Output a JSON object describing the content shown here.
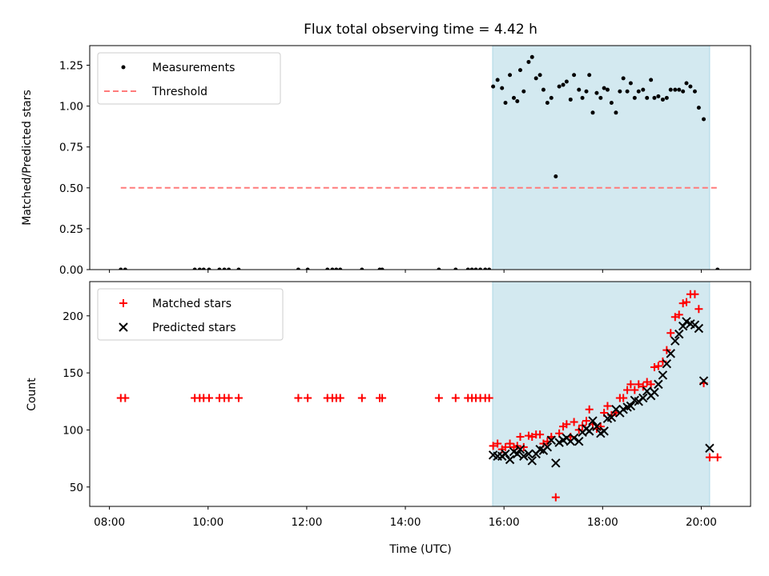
{
  "chart_data": [
    {
      "type": "scatter",
      "title": "Flux total observing time = 4.42 h",
      "xlabel": "",
      "ylabel": "Matched/Predicted stars",
      "x_unit": "hours (UTC)",
      "xlim": [
        7.6,
        21.0
      ],
      "ylim": [
        0.0,
        1.37
      ],
      "yticks": [
        0.0,
        0.25,
        0.5,
        0.75,
        1.0,
        1.25
      ],
      "ytick_labels": [
        "0.00",
        "0.25",
        "0.50",
        "0.75",
        "1.00",
        "1.25"
      ],
      "shaded_region": {
        "x_start": 15.77,
        "x_end": 20.17,
        "color": "#d3e9f0"
      },
      "legend": {
        "placement": "upper-left",
        "entries": [
          "Measurements",
          "Threshold"
        ]
      },
      "series": [
        {
          "name": "Measurements",
          "marker": "dot",
          "color": "#000000",
          "points": [
            [
              8.23,
              0.0
            ],
            [
              8.32,
              0.0
            ],
            [
              9.73,
              0.0
            ],
            [
              9.83,
              0.0
            ],
            [
              9.91,
              0.0
            ],
            [
              10.02,
              0.0
            ],
            [
              10.23,
              0.0
            ],
            [
              10.33,
              0.0
            ],
            [
              10.42,
              0.0
            ],
            [
              10.62,
              0.0
            ],
            [
              11.83,
              0.0
            ],
            [
              12.02,
              0.0
            ],
            [
              12.42,
              0.0
            ],
            [
              12.52,
              0.0
            ],
            [
              12.6,
              0.0
            ],
            [
              12.68,
              0.0
            ],
            [
              13.12,
              0.0
            ],
            [
              13.48,
              0.0
            ],
            [
              13.53,
              0.0
            ],
            [
              14.68,
              0.0
            ],
            [
              15.02,
              0.0
            ],
            [
              15.27,
              0.0
            ],
            [
              15.35,
              0.0
            ],
            [
              15.43,
              0.0
            ],
            [
              15.52,
              0.0
            ],
            [
              15.62,
              0.0
            ],
            [
              15.7,
              0.0
            ],
            [
              15.78,
              1.12
            ],
            [
              15.87,
              1.16
            ],
            [
              15.96,
              1.11
            ],
            [
              16.03,
              1.02
            ],
            [
              16.12,
              1.19
            ],
            [
              16.2,
              1.05
            ],
            [
              16.27,
              1.03
            ],
            [
              16.33,
              1.22
            ],
            [
              16.4,
              1.09
            ],
            [
              16.5,
              1.27
            ],
            [
              16.57,
              1.3
            ],
            [
              16.65,
              1.17
            ],
            [
              16.73,
              1.19
            ],
            [
              16.8,
              1.1
            ],
            [
              16.88,
              1.02
            ],
            [
              16.96,
              1.05
            ],
            [
              17.05,
              0.57
            ],
            [
              17.12,
              1.12
            ],
            [
              17.2,
              1.13
            ],
            [
              17.27,
              1.15
            ],
            [
              17.35,
              1.04
            ],
            [
              17.42,
              1.19
            ],
            [
              17.52,
              1.1
            ],
            [
              17.59,
              1.05
            ],
            [
              17.67,
              1.09
            ],
            [
              17.73,
              1.19
            ],
            [
              17.8,
              0.96
            ],
            [
              17.88,
              1.08
            ],
            [
              17.96,
              1.05
            ],
            [
              18.03,
              1.11
            ],
            [
              18.1,
              1.1
            ],
            [
              18.18,
              1.02
            ],
            [
              18.27,
              0.96
            ],
            [
              18.35,
              1.09
            ],
            [
              18.42,
              1.17
            ],
            [
              18.5,
              1.09
            ],
            [
              18.57,
              1.14
            ],
            [
              18.65,
              1.05
            ],
            [
              18.73,
              1.09
            ],
            [
              18.82,
              1.1
            ],
            [
              18.9,
              1.05
            ],
            [
              18.98,
              1.16
            ],
            [
              19.05,
              1.05
            ],
            [
              19.13,
              1.06
            ],
            [
              19.22,
              1.04
            ],
            [
              19.3,
              1.05
            ],
            [
              19.38,
              1.1
            ],
            [
              19.47,
              1.1
            ],
            [
              19.55,
              1.1
            ],
            [
              19.63,
              1.09
            ],
            [
              19.7,
              1.14
            ],
            [
              19.78,
              1.12
            ],
            [
              19.87,
              1.09
            ],
            [
              19.95,
              0.99
            ],
            [
              20.05,
              0.92
            ],
            [
              20.33,
              0.0
            ]
          ]
        },
        {
          "name": "Threshold",
          "marker": "dashed-line",
          "color": "#ff7b7b",
          "points": [
            [
              8.23,
              0.5
            ],
            [
              20.33,
              0.5
            ]
          ]
        }
      ]
    },
    {
      "type": "scatter",
      "title": "",
      "xlabel": "Time (UTC)",
      "ylabel": "Count",
      "x_unit": "hours (UTC)",
      "xlim": [
        7.6,
        21.0
      ],
      "ylim": [
        33,
        230
      ],
      "yticks": [
        50,
        100,
        150,
        200
      ],
      "ytick_labels": [
        "50",
        "100",
        "150",
        "200"
      ],
      "xticks": [
        8,
        10,
        12,
        14,
        16,
        18,
        20
      ],
      "xtick_labels": [
        "08:00",
        "10:00",
        "12:00",
        "14:00",
        "16:00",
        "18:00",
        "20:00"
      ],
      "shaded_region": {
        "x_start": 15.77,
        "x_end": 20.17,
        "color": "#d3e9f0"
      },
      "legend": {
        "placement": "upper-left",
        "entries": [
          "Matched stars",
          "Predicted stars"
        ]
      },
      "series": [
        {
          "name": "Matched stars",
          "marker": "plus",
          "color": "#ff0000",
          "points": [
            [
              8.23,
              128
            ],
            [
              8.32,
              128
            ],
            [
              9.73,
              128
            ],
            [
              9.83,
              128
            ],
            [
              9.91,
              128
            ],
            [
              10.02,
              128
            ],
            [
              10.23,
              128
            ],
            [
              10.33,
              128
            ],
            [
              10.42,
              128
            ],
            [
              10.62,
              128
            ],
            [
              11.83,
              128
            ],
            [
              12.02,
              128
            ],
            [
              12.42,
              128
            ],
            [
              12.52,
              128
            ],
            [
              12.6,
              128
            ],
            [
              12.68,
              128
            ],
            [
              13.12,
              128
            ],
            [
              13.48,
              128
            ],
            [
              13.53,
              128
            ],
            [
              14.68,
              128
            ],
            [
              15.02,
              128
            ],
            [
              15.27,
              128
            ],
            [
              15.35,
              128
            ],
            [
              15.43,
              128
            ],
            [
              15.52,
              128
            ],
            [
              15.62,
              128
            ],
            [
              15.7,
              128
            ],
            [
              15.78,
              86
            ],
            [
              15.87,
              88
            ],
            [
              15.96,
              83
            ],
            [
              16.03,
              85
            ],
            [
              16.12,
              88
            ],
            [
              16.2,
              85
            ],
            [
              16.27,
              86
            ],
            [
              16.33,
              94
            ],
            [
              16.4,
              85
            ],
            [
              16.5,
              95
            ],
            [
              16.57,
              94
            ],
            [
              16.65,
              96
            ],
            [
              16.73,
              96
            ],
            [
              16.8,
              88
            ],
            [
              16.88,
              90
            ],
            [
              16.96,
              94
            ],
            [
              17.05,
              41
            ],
            [
              17.12,
              97
            ],
            [
              17.2,
              103
            ],
            [
              17.27,
              105
            ],
            [
              17.35,
              94
            ],
            [
              17.42,
              107
            ],
            [
              17.52,
              100
            ],
            [
              17.59,
              104
            ],
            [
              17.67,
              108
            ],
            [
              17.73,
              118
            ],
            [
              17.8,
              105
            ],
            [
              17.88,
              101
            ],
            [
              17.96,
              103
            ],
            [
              18.03,
              115
            ],
            [
              18.1,
              121
            ],
            [
              18.18,
              113
            ],
            [
              18.27,
              115
            ],
            [
              18.35,
              128
            ],
            [
              18.42,
              128
            ],
            [
              18.5,
              135
            ],
            [
              18.57,
              140
            ],
            [
              18.65,
              135
            ],
            [
              18.73,
              140
            ],
            [
              18.82,
              138
            ],
            [
              18.9,
              142
            ],
            [
              18.98,
              140
            ],
            [
              19.05,
              155
            ],
            [
              19.13,
              156
            ],
            [
              19.22,
              160
            ],
            [
              19.3,
              170
            ],
            [
              19.38,
              185
            ],
            [
              19.47,
              199
            ],
            [
              19.55,
              201
            ],
            [
              19.63,
              211
            ],
            [
              19.7,
              212
            ],
            [
              19.78,
              219
            ],
            [
              19.87,
              219
            ],
            [
              19.95,
              206
            ],
            [
              20.05,
              141
            ],
            [
              20.17,
              76
            ],
            [
              20.33,
              76
            ]
          ]
        },
        {
          "name": "Predicted stars",
          "marker": "x",
          "color": "#000000",
          "points": [
            [
              15.78,
              78
            ],
            [
              15.87,
              77
            ],
            [
              15.96,
              77
            ],
            [
              16.03,
              79
            ],
            [
              16.12,
              74
            ],
            [
              16.2,
              81
            ],
            [
              16.27,
              79
            ],
            [
              16.33,
              83
            ],
            [
              16.4,
              77
            ],
            [
              16.5,
              79
            ],
            [
              16.57,
              73
            ],
            [
              16.65,
              79
            ],
            [
              16.73,
              83
            ],
            [
              16.8,
              82
            ],
            [
              16.88,
              85
            ],
            [
              16.96,
              91
            ],
            [
              17.05,
              71
            ],
            [
              17.12,
              89
            ],
            [
              17.2,
              91
            ],
            [
              17.27,
              93
            ],
            [
              17.35,
              90
            ],
            [
              17.42,
              93
            ],
            [
              17.52,
              90
            ],
            [
              17.59,
              98
            ],
            [
              17.67,
              101
            ],
            [
              17.73,
              99
            ],
            [
              17.8,
              108
            ],
            [
              17.88,
              103
            ],
            [
              17.96,
              97
            ],
            [
              18.03,
              99
            ],
            [
              18.1,
              110
            ],
            [
              18.18,
              111
            ],
            [
              18.27,
              118
            ],
            [
              18.35,
              115
            ],
            [
              18.42,
              118
            ],
            [
              18.5,
              120
            ],
            [
              18.57,
              121
            ],
            [
              18.65,
              126
            ],
            [
              18.73,
              125
            ],
            [
              18.82,
              128
            ],
            [
              18.9,
              134
            ],
            [
              18.98,
              130
            ],
            [
              19.05,
              133
            ],
            [
              19.13,
              140
            ],
            [
              19.22,
              148
            ],
            [
              19.3,
              158
            ],
            [
              19.38,
              167
            ],
            [
              19.47,
              178
            ],
            [
              19.55,
              184
            ],
            [
              19.63,
              191
            ],
            [
              19.7,
              195
            ],
            [
              19.78,
              193
            ],
            [
              19.87,
              192
            ],
            [
              19.95,
              189
            ],
            [
              20.05,
              143
            ],
            [
              20.17,
              84
            ]
          ]
        }
      ]
    }
  ]
}
